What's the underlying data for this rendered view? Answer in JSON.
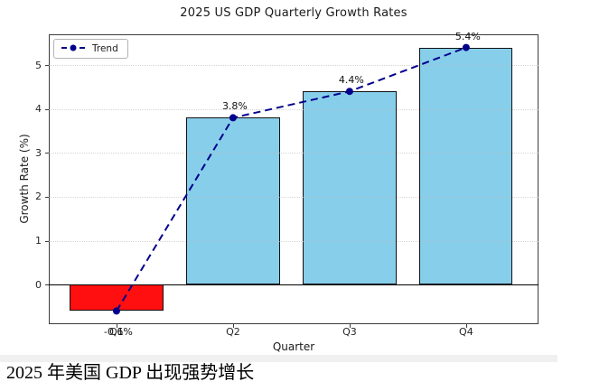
{
  "page": {
    "caption": "2025 年美国 GDP 出现强势增长"
  },
  "chart_data": {
    "type": "bar",
    "title": "2025 US GDP Quarterly Growth Rates",
    "xlabel": "Quarter",
    "ylabel": "Growth Rate (%)",
    "categories": [
      "Q1",
      "Q2",
      "Q3",
      "Q4"
    ],
    "values": [
      -0.6,
      3.8,
      4.4,
      5.4
    ],
    "data_labels": [
      "-0.6%",
      "3.8%",
      "4.4%",
      "5.4%"
    ],
    "bar_colors": [
      "#ff0f0f",
      "#87ceeb",
      "#87ceeb",
      "#87ceeb"
    ],
    "bar_edge_color": "#111111",
    "trend": {
      "name": "Trend",
      "values": [
        -0.6,
        3.8,
        4.4,
        5.4
      ],
      "color": "#00008b",
      "line_style": "dashed",
      "marker": "circle"
    },
    "legend": {
      "position": "upper-left",
      "entries": [
        {
          "label": "Trend",
          "color": "#00008b"
        }
      ]
    },
    "yticks": [
      0,
      1,
      2,
      3,
      4,
      5
    ],
    "ylim": [
      -0.9,
      5.7
    ],
    "grid": true,
    "grid_color": "#bbbbbb",
    "axis_color": "#3c3c3c"
  }
}
